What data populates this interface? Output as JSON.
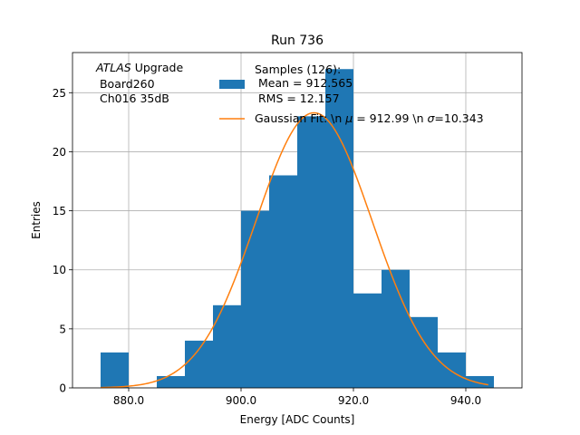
{
  "chart_data": {
    "type": "histogram",
    "title": "Run 736",
    "xlabel": "Energy [ADC Counts]",
    "ylabel": "Entries",
    "xlim": [
      870,
      950
    ],
    "ylim": [
      0,
      28.4
    ],
    "grid": true,
    "xticks": [
      880,
      900,
      920,
      940
    ],
    "xtick_labels": [
      "880.0",
      "900.0",
      "920.0",
      "940.0"
    ],
    "yticks": [
      0,
      5,
      10,
      15,
      20,
      25
    ],
    "yticks_labels": [
      "0",
      "5",
      "10",
      "15",
      "20",
      "25"
    ],
    "bin_width": 5,
    "bins": [
      {
        "start": 875,
        "count": 3
      },
      {
        "start": 880,
        "count": 0
      },
      {
        "start": 885,
        "count": 1
      },
      {
        "start": 890,
        "count": 4
      },
      {
        "start": 895,
        "count": 7
      },
      {
        "start": 900,
        "count": 15
      },
      {
        "start": 905,
        "count": 18
      },
      {
        "start": 910,
        "count": 23
      },
      {
        "start": 915,
        "count": 27
      },
      {
        "start": 920,
        "count": 8
      },
      {
        "start": 925,
        "count": 10
      },
      {
        "start": 930,
        "count": 6
      },
      {
        "start": 935,
        "count": 3
      },
      {
        "start": 940,
        "count": 1
      }
    ],
    "fit": {
      "type": "gaussian",
      "mu": 912.99,
      "sigma": 10.343,
      "amplitude": 23.3,
      "x_range": [
        875,
        944
      ]
    },
    "colors": {
      "bars": "#1f77b4",
      "fit": "#ff7f0e",
      "grid": "#b0b0b0"
    },
    "annotation": {
      "line1": "ATLAS",
      "line1_rest": " Upgrade",
      "line2": " Board260",
      "line3": " Ch016 35dB"
    },
    "legend": {
      "placement": "top-right",
      "samples": {
        "line1": "Samples (126):",
        "line2": " Mean = 912.565",
        "line3": " RMS = 12.157"
      },
      "fit": {
        "prefix": "Gaussian Fit: \\n ",
        "mu_sym": "μ",
        "mid": " = 912.99 \\n ",
        "sigma_sym": "σ",
        "suffix": "=10.343"
      }
    }
  }
}
